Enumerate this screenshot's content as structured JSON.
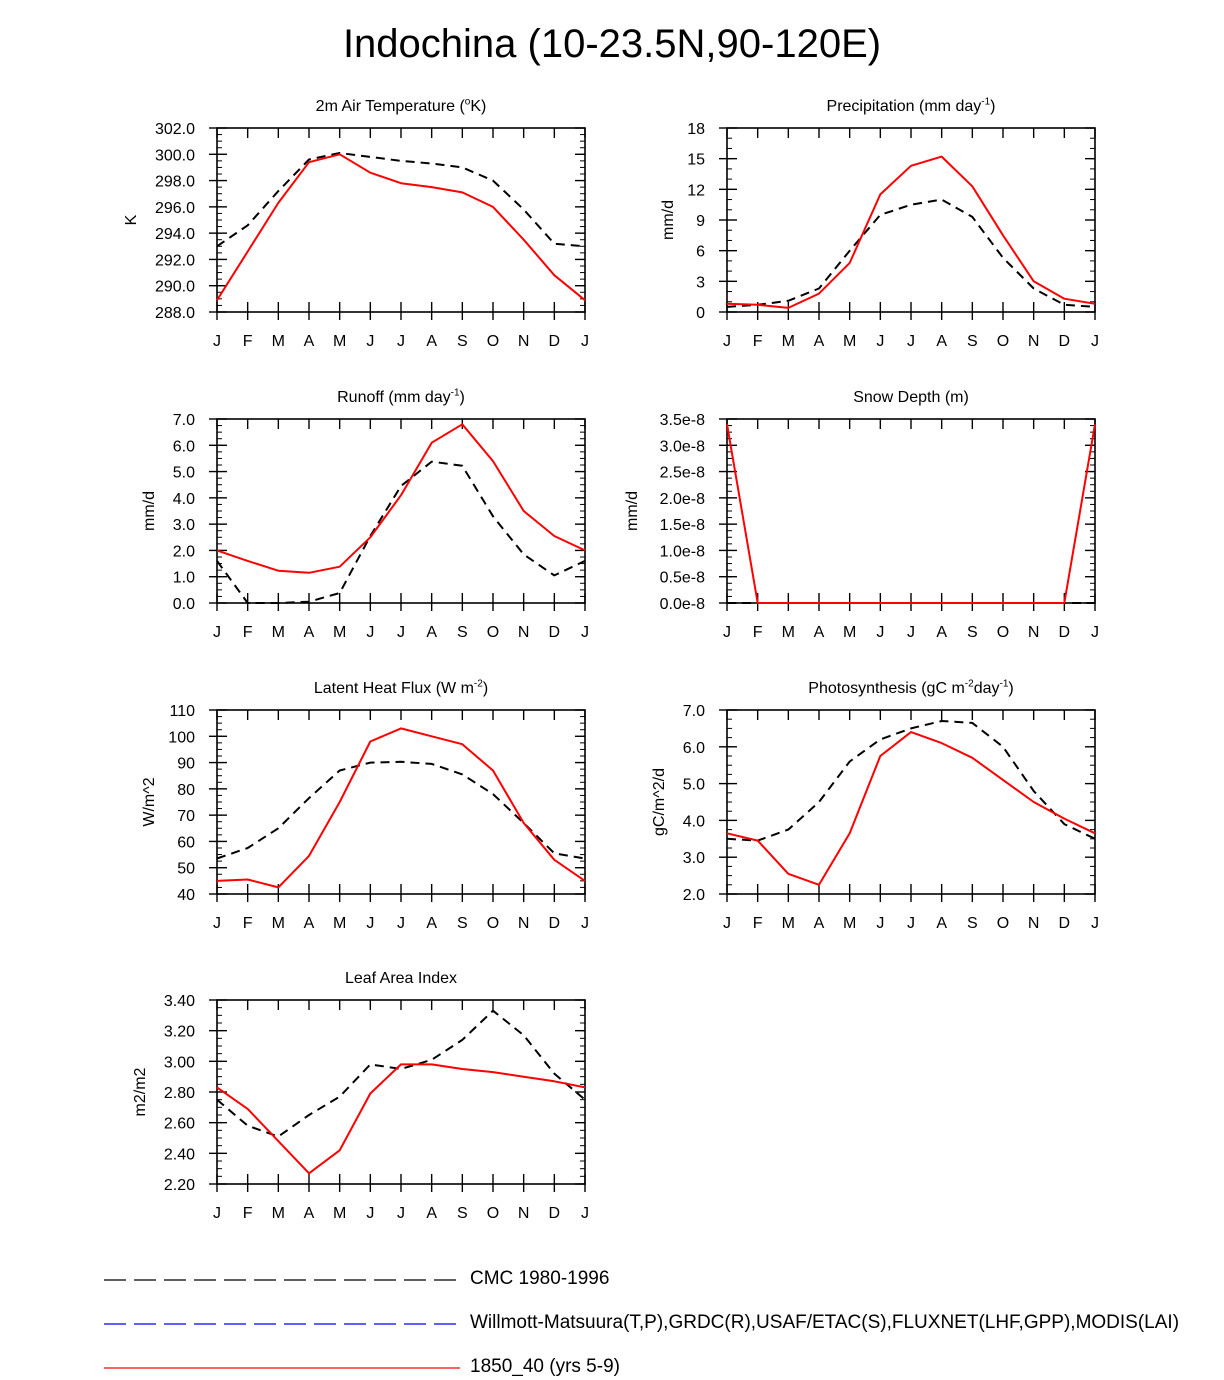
{
  "title": "Indochina (10-23.5N,90-120E)",
  "months": [
    "J",
    "F",
    "M",
    "A",
    "M",
    "J",
    "J",
    "A",
    "S",
    "O",
    "N",
    "D",
    "J"
  ],
  "colors": {
    "obs": "#000000",
    "obs2": "#0000ff",
    "model": "#ff0000"
  },
  "chart_data": [
    {
      "type": "line",
      "title_main": "2m Air Temperature (",
      "title_sup": "o",
      "title_rest": "K)",
      "ylabel": "K",
      "ylim": [
        288,
        302
      ],
      "ticks": [
        "288.0",
        "290.0",
        "292.0",
        "294.0",
        "296.0",
        "298.0",
        "300.0",
        "302.0"
      ],
      "minor_step": 0.5,
      "series": [
        {
          "name": "CMC 1980-1996",
          "style": "dashed",
          "values": [
            293.0,
            294.6,
            297.2,
            299.6,
            300.1,
            299.8,
            299.5,
            299.3,
            299.0,
            298.0,
            295.8,
            293.2,
            293.0
          ]
        },
        {
          "name": "1850_40 (yrs 5-9)",
          "style": "solid",
          "values": [
            288.9,
            292.6,
            296.3,
            299.4,
            300.0,
            298.6,
            297.8,
            297.5,
            297.1,
            296.0,
            293.5,
            290.8,
            288.9
          ]
        }
      ]
    },
    {
      "type": "line",
      "title_main": "Precipitation (mm day",
      "title_sup": "-1",
      "title_rest": ")",
      "ylabel": "mm/d",
      "ylim": [
        0,
        18
      ],
      "ticks": [
        "0",
        "3",
        "6",
        "9",
        "12",
        "15",
        "18"
      ],
      "minor_step": 1,
      "series": [
        {
          "name": "CMC 1980-1996",
          "style": "dashed",
          "values": [
            0.5,
            0.7,
            1.1,
            2.3,
            6.0,
            9.5,
            10.5,
            11.0,
            9.3,
            5.3,
            2.3,
            0.7,
            0.5
          ]
        },
        {
          "name": "1850_40 (yrs 5-9)",
          "style": "solid",
          "values": [
            0.8,
            0.7,
            0.4,
            1.8,
            4.8,
            11.5,
            14.3,
            15.2,
            12.3,
            7.5,
            3.0,
            1.3,
            0.8
          ]
        }
      ]
    },
    {
      "type": "line",
      "title_main": "Runoff (mm day",
      "title_sup": "-1",
      "title_rest": ")",
      "ylabel": "mm/d",
      "ylim": [
        0,
        7
      ],
      "ticks": [
        "0.0",
        "1.0",
        "2.0",
        "3.0",
        "4.0",
        "5.0",
        "6.0",
        "7.0"
      ],
      "minor_step": 0.25,
      "series": [
        {
          "name": "CMC 1980-1996",
          "style": "dashed",
          "values": [
            1.6,
            0.0,
            0.0,
            0.05,
            0.38,
            2.55,
            4.45,
            5.38,
            5.22,
            3.3,
            1.85,
            1.05,
            1.6
          ]
        },
        {
          "name": "1850_40 (yrs 5-9)",
          "style": "solid",
          "values": [
            2.0,
            1.6,
            1.23,
            1.15,
            1.38,
            2.5,
            4.1,
            6.1,
            6.8,
            5.4,
            3.5,
            2.55,
            2.0
          ]
        }
      ]
    },
    {
      "type": "line",
      "title_main": "Snow Depth (m)",
      "title_sup": "",
      "title_rest": "",
      "ylabel": "mm/d",
      "ylim": [
        0,
        3.5
      ],
      "ticks": [
        "0.0e-8",
        "0.5e-8",
        "1.0e-8",
        "1.5e-8",
        "2.0e-8",
        "2.5e-8",
        "3.0e-8",
        "3.5e-8"
      ],
      "minor_step": 0.125,
      "series": [
        {
          "name": "CMC 1980-1996",
          "style": "dashed",
          "values": [
            0,
            0,
            0,
            0,
            0,
            0,
            0,
            0,
            0,
            0,
            0,
            0,
            0
          ]
        },
        {
          "name": "1850_40 (yrs 5-9)",
          "style": "solid",
          "values": [
            3.4,
            0,
            0,
            0,
            0,
            0,
            0,
            0,
            0,
            0,
            0,
            0,
            3.4
          ]
        }
      ]
    },
    {
      "type": "line",
      "title_main": "Latent Heat Flux (W m",
      "title_sup": "-2",
      "title_rest": ")",
      "ylabel": "W/m^2",
      "ylim": [
        40,
        110
      ],
      "ticks": [
        "40",
        "50",
        "60",
        "70",
        "80",
        "90",
        "100",
        "110"
      ],
      "minor_step": 2.5,
      "series": [
        {
          "name": "CMC 1980-1996",
          "style": "dashed",
          "values": [
            53.5,
            57.5,
            65.0,
            76.5,
            87.0,
            90.0,
            90.3,
            89.5,
            85.5,
            78.0,
            67.0,
            55.5,
            53.5
          ]
        },
        {
          "name": "1850_40 (yrs 5-9)",
          "style": "solid",
          "values": [
            45.0,
            45.5,
            42.5,
            54.5,
            75.0,
            98.0,
            103.0,
            100.0,
            97.0,
            87.0,
            67.0,
            53.0,
            45.0
          ]
        }
      ]
    },
    {
      "type": "line",
      "title_main": "Photosynthesis (gC m",
      "title_sup": "-2",
      "title_rest": "day",
      "title_sup2": "-1",
      "title_end": ")",
      "ylabel": "gC/m^2/d",
      "ylim": [
        2,
        7
      ],
      "ticks": [
        "2.0",
        "3.0",
        "4.0",
        "5.0",
        "6.0",
        "7.0"
      ],
      "minor_step": 0.25,
      "series": [
        {
          "name": "CMC 1980-1996",
          "style": "dashed",
          "values": [
            3.5,
            3.45,
            3.75,
            4.5,
            5.6,
            6.2,
            6.5,
            6.7,
            6.65,
            6.0,
            4.8,
            3.9,
            3.5
          ]
        },
        {
          "name": "1850_40 (yrs 5-9)",
          "style": "solid",
          "values": [
            3.65,
            3.45,
            2.55,
            2.25,
            3.65,
            5.75,
            6.4,
            6.1,
            5.7,
            5.1,
            4.5,
            4.05,
            3.65
          ]
        }
      ]
    },
    {
      "type": "line",
      "title_main": "Leaf Area Index",
      "title_sup": "",
      "title_rest": "",
      "ylabel": "m2/m2",
      "ylim": [
        2.2,
        3.4
      ],
      "ticks": [
        "2.20",
        "2.40",
        "2.60",
        "2.80",
        "3.00",
        "3.20",
        "3.40"
      ],
      "minor_step": 0.05,
      "series": [
        {
          "name": "CMC 1980-1996",
          "style": "dashed",
          "values": [
            2.75,
            2.58,
            2.51,
            2.65,
            2.77,
            2.98,
            2.95,
            3.01,
            3.14,
            3.33,
            3.17,
            2.92,
            2.75
          ]
        },
        {
          "name": "1850_40 (yrs 5-9)",
          "style": "solid",
          "values": [
            2.83,
            2.69,
            2.48,
            2.27,
            2.42,
            2.79,
            2.98,
            2.98,
            2.95,
            2.93,
            2.9,
            2.87,
            2.83
          ]
        }
      ]
    }
  ],
  "legend": [
    {
      "label": "CMC 1980-1996",
      "style": "dashed",
      "color": "#000000"
    },
    {
      "label": "Willmott-Matsuura(T,P),GRDC(R),USAF/ETAC(S),FLUXNET(LHF,GPP),MODIS(LAI)",
      "style": "dashed",
      "color": "#0000ff"
    },
    {
      "label": "1850_40 (yrs 5-9)",
      "style": "solid",
      "color": "#ff0000"
    }
  ]
}
